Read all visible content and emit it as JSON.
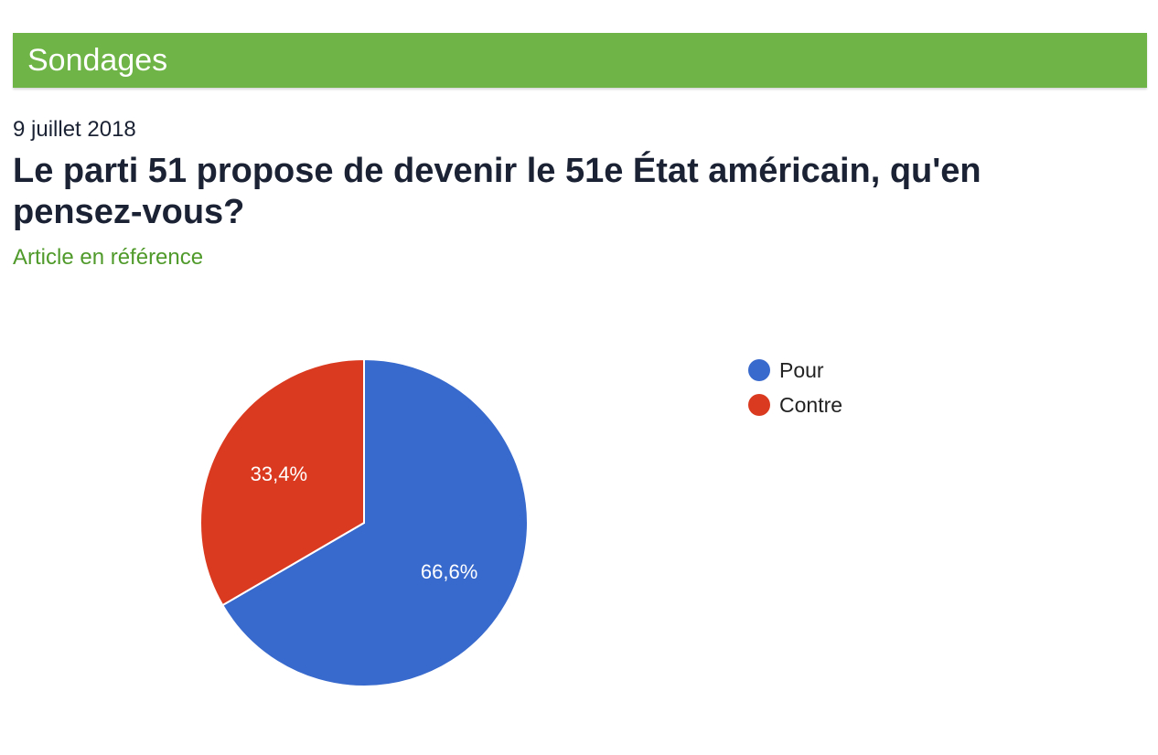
{
  "header": {
    "title": "Sondages"
  },
  "poll": {
    "date": "9 juillet 2018",
    "question": "Le parti 51 propose de devenir le 51e État américain, qu'en pensez-vous?",
    "link_label": "Article en référence"
  },
  "chart_data": {
    "type": "pie",
    "categories": [
      "Pour",
      "Contre"
    ],
    "values": [
      66.6,
      33.4
    ],
    "slice_labels": [
      "66,6%",
      "33,4%"
    ],
    "colors": [
      "#3869cc",
      "#da3b20"
    ],
    "legend": "right"
  }
}
